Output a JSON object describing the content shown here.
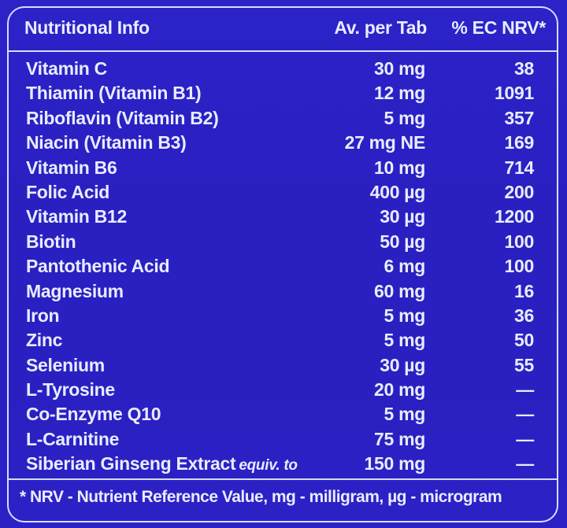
{
  "panel": {
    "header": {
      "title": "Nutritional Info",
      "amount_col": "Av. per Tab",
      "nrv_col": "% EC NRV*"
    },
    "rows": [
      {
        "name": "Vitamin C",
        "note": "",
        "amount": "30 mg",
        "nrv": "38"
      },
      {
        "name": "Thiamin (Vitamin B1)",
        "note": "",
        "amount": "12 mg",
        "nrv": "1091"
      },
      {
        "name": "Riboflavin (Vitamin B2)",
        "note": "",
        "amount": "5 mg",
        "nrv": "357"
      },
      {
        "name": "Niacin (Vitamin B3)",
        "note": "",
        "amount": "27 mg NE",
        "nrv": "169"
      },
      {
        "name": "Vitamin B6",
        "note": "",
        "amount": "10 mg",
        "nrv": "714"
      },
      {
        "name": "Folic Acid",
        "note": "",
        "amount": "400 µg",
        "nrv": "200"
      },
      {
        "name": "Vitamin B12",
        "note": "",
        "amount": "30 µg",
        "nrv": "1200"
      },
      {
        "name": "Biotin",
        "note": "",
        "amount": "50 µg",
        "nrv": "100"
      },
      {
        "name": "Pantothenic Acid",
        "note": "",
        "amount": "6 mg",
        "nrv": "100"
      },
      {
        "name": "Magnesium",
        "note": "",
        "amount": "60 mg",
        "nrv": "16"
      },
      {
        "name": "Iron",
        "note": "",
        "amount": "5 mg",
        "nrv": "36"
      },
      {
        "name": "Zinc",
        "note": "",
        "amount": "5 mg",
        "nrv": "50"
      },
      {
        "name": "Selenium",
        "note": "",
        "amount": "30 µg",
        "nrv": "55"
      },
      {
        "name": "L-Tyrosine",
        "note": "",
        "amount": "20 mg",
        "nrv": "—"
      },
      {
        "name": "Co-Enzyme Q10",
        "note": "",
        "amount": "5 mg",
        "nrv": "—"
      },
      {
        "name": "L-Carnitine",
        "note": "",
        "amount": "75 mg",
        "nrv": "—"
      },
      {
        "name": "Siberian Ginseng Extract",
        "note": "equiv. to",
        "amount": "150 mg",
        "nrv": "—"
      }
    ],
    "footer": "* NRV - Nutrient Reference Value, mg - milligram,  µg - microgram"
  },
  "colors": {
    "background": "#2a1fc2",
    "text": "#e8ecff",
    "border": "#d6dcff"
  }
}
